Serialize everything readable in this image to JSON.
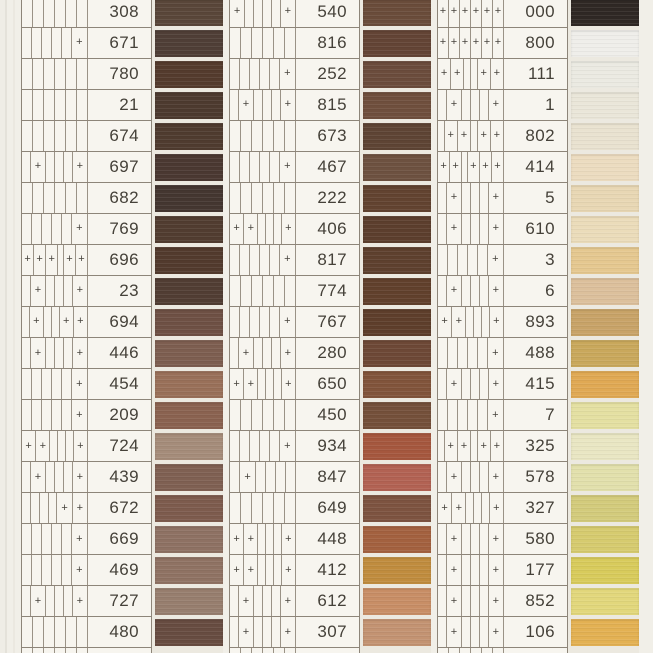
{
  "card": {
    "mark_symbol": "+",
    "cells_per_row": 6,
    "background_color": "#f1efe8",
    "cell_area_color": "#f7f5ef",
    "grid_line_color": "#8d8579",
    "code_text_color": "#454139",
    "swatch_gap_color": "#ece9e0"
  },
  "panels": [
    {
      "name": "panel-1",
      "rows": [
        {
          "code": "308",
          "marks": [],
          "color": "#594639"
        },
        {
          "code": "671",
          "marks": [
            6
          ],
          "color": "#4f3e36"
        },
        {
          "code": "780",
          "marks": [],
          "color": "#543b2d"
        },
        {
          "code": "21",
          "marks": [],
          "color": "#4d3a2f"
        },
        {
          "code": "674",
          "marks": [],
          "color": "#4f3b2f"
        },
        {
          "code": "697",
          "marks": [
            2,
            6
          ],
          "color": "#4a3831"
        },
        {
          "code": "682",
          "marks": [],
          "color": "#443630"
        },
        {
          "code": "769",
          "marks": [
            6
          ],
          "color": "#513c30"
        },
        {
          "code": "696",
          "marks": [
            1,
            2,
            3,
            5,
            6
          ],
          "color": "#523a2d"
        },
        {
          "code": "23",
          "marks": [
            2,
            6
          ],
          "color": "#513d33"
        },
        {
          "code": "694",
          "marks": [
            2,
            5,
            6
          ],
          "color": "#6e5044"
        },
        {
          "code": "446",
          "marks": [
            2,
            6
          ],
          "color": "#7d5e50"
        },
        {
          "code": "454",
          "marks": [
            6
          ],
          "color": "#997059"
        },
        {
          "code": "209",
          "marks": [
            6
          ],
          "color": "#8a6250"
        },
        {
          "code": "724",
          "marks": [
            1,
            2,
            6
          ],
          "color": "#a58c7a"
        },
        {
          "code": "439",
          "marks": [
            2,
            6
          ],
          "color": "#7f6052"
        },
        {
          "code": "672",
          "marks": [
            5,
            6
          ],
          "color": "#7d5b4d"
        },
        {
          "code": "669",
          "marks": [
            6
          ],
          "color": "#8e7163"
        },
        {
          "code": "469",
          "marks": [
            6
          ],
          "color": "#8f7263"
        },
        {
          "code": "727",
          "marks": [
            2,
            6
          ],
          "color": "#977e6e"
        },
        {
          "code": "480",
          "marks": [],
          "color": "#674c41"
        }
      ]
    },
    {
      "name": "panel-2",
      "rows": [
        {
          "code": "540",
          "marks": [
            1,
            6
          ],
          "color": "#6a4c3a"
        },
        {
          "code": "816",
          "marks": [],
          "color": "#634435"
        },
        {
          "code": "252",
          "marks": [
            6
          ],
          "color": "#6b4c3c"
        },
        {
          "code": "815",
          "marks": [
            2,
            6
          ],
          "color": "#6f4f3d"
        },
        {
          "code": "673",
          "marks": [],
          "color": "#5e4434"
        },
        {
          "code": "467",
          "marks": [
            6
          ],
          "color": "#6d5140"
        },
        {
          "code": "222",
          "marks": [],
          "color": "#624330"
        },
        {
          "code": "406",
          "marks": [
            1,
            2,
            6
          ],
          "color": "#5c3e2d"
        },
        {
          "code": "817",
          "marks": [
            6
          ],
          "color": "#5e402e"
        },
        {
          "code": "774",
          "marks": [],
          "color": "#61402c"
        },
        {
          "code": "767",
          "marks": [
            6
          ],
          "color": "#5e3e2b"
        },
        {
          "code": "280",
          "marks": [
            2,
            6
          ],
          "color": "#6d4836"
        },
        {
          "code": "650",
          "marks": [
            1,
            2,
            6
          ],
          "color": "#81543b"
        },
        {
          "code": "450",
          "marks": [],
          "color": "#74503a"
        },
        {
          "code": "934",
          "marks": [
            6
          ],
          "color": "#a5573e"
        },
        {
          "code": "847",
          "marks": [
            2
          ],
          "color": "#b26253"
        },
        {
          "code": "649",
          "marks": [],
          "color": "#7d5340"
        },
        {
          "code": "448",
          "marks": [
            1,
            2,
            6
          ],
          "color": "#a3613f"
        },
        {
          "code": "412",
          "marks": [
            1,
            2,
            6
          ],
          "color": "#c08c3e"
        },
        {
          "code": "612",
          "marks": [
            2,
            6
          ],
          "color": "#c88e66"
        },
        {
          "code": "307",
          "marks": [
            2,
            6
          ],
          "color": "#c39372"
        }
      ]
    },
    {
      "name": "panel-3",
      "rows": [
        {
          "code": "000",
          "marks": [
            1,
            2,
            3,
            4,
            5,
            6
          ],
          "color": "#2f2824"
        },
        {
          "code": "800",
          "marks": [
            1,
            2,
            3,
            4,
            5,
            6
          ],
          "color": "#efeeea"
        },
        {
          "code": "111",
          "marks": [
            1,
            2,
            5,
            6
          ],
          "color": "#ebeae2"
        },
        {
          "code": "1",
          "marks": [
            2,
            6
          ],
          "color": "#eae6d9"
        },
        {
          "code": "802",
          "marks": [
            2,
            3,
            5,
            6
          ],
          "color": "#e9e2d0"
        },
        {
          "code": "414",
          "marks": [
            1,
            2,
            4,
            5,
            6
          ],
          "color": "#ecdcc0"
        },
        {
          "code": "5",
          "marks": [
            2,
            6
          ],
          "color": "#e8d7b4"
        },
        {
          "code": "610",
          "marks": [
            2,
            6
          ],
          "color": "#ebdcba"
        },
        {
          "code": "3",
          "marks": [
            6
          ],
          "color": "#e5c890"
        },
        {
          "code": "6",
          "marks": [
            2,
            6
          ],
          "color": "#dcc09c"
        },
        {
          "code": "893",
          "marks": [
            1,
            2,
            6
          ],
          "color": "#c8a368"
        },
        {
          "code": "488",
          "marks": [
            6
          ],
          "color": "#c9a85c"
        },
        {
          "code": "415",
          "marks": [
            2,
            6
          ],
          "color": "#e0a954"
        },
        {
          "code": "7",
          "marks": [
            6
          ],
          "color": "#e4e0a2"
        },
        {
          "code": "325",
          "marks": [
            2,
            3,
            5,
            6
          ],
          "color": "#e9e6c3"
        },
        {
          "code": "578",
          "marks": [
            2,
            6
          ],
          "color": "#e2e0ac"
        },
        {
          "code": "327",
          "marks": [
            1,
            2,
            6
          ],
          "color": "#d3cb7c"
        },
        {
          "code": "580",
          "marks": [
            2,
            6
          ],
          "color": "#d6cb6f"
        },
        {
          "code": "177",
          "marks": [
            2,
            6
          ],
          "color": "#d8cb5c"
        },
        {
          "code": "852",
          "marks": [
            2,
            6
          ],
          "color": "#e2d77c"
        },
        {
          "code": "106",
          "marks": [
            2,
            6
          ],
          "color": "#e3b153"
        }
      ]
    }
  ]
}
